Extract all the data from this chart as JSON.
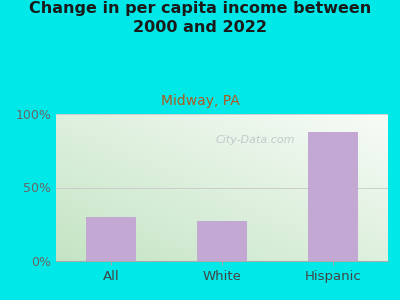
{
  "title": "Change in per capita income between\n2000 and 2022",
  "subtitle": "Midway, PA",
  "categories": [
    "All",
    "White",
    "Hispanic"
  ],
  "values": [
    30,
    27,
    88
  ],
  "bar_color": "#c4a8d4",
  "background_color": "#00e8e8",
  "plot_bg_top_right": "#f5f8f0",
  "plot_bg_bottom_left": "#d0ecd0",
  "title_color": "#1a1a1a",
  "subtitle_color": "#b05820",
  "tick_label_color": "#666666",
  "xlabel_color": "#444444",
  "ylim": [
    0,
    100
  ],
  "yticks": [
    0,
    50,
    100
  ],
  "ytick_labels": [
    "0%",
    "50%",
    "100%"
  ],
  "watermark": "City-Data.com",
  "title_fontsize": 11.5,
  "subtitle_fontsize": 10
}
